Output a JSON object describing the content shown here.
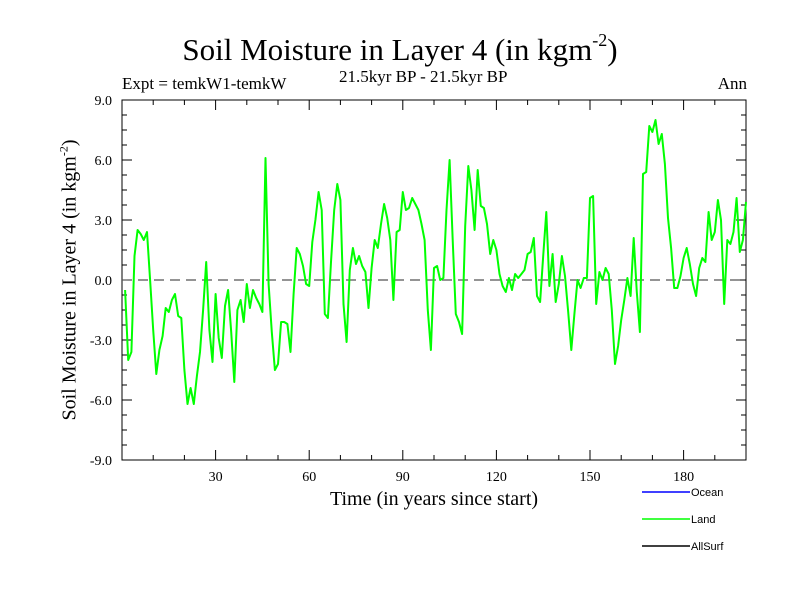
{
  "chart_data": {
    "type": "line",
    "title": "Soil Moisture in Layer 4 (in kgm",
    "title_sup": "-2",
    "title_close": ")",
    "expt_label": "Expt = temkW1-temkW",
    "period_label": "21.5kyr BP - 21.5kyr BP",
    "season_label": "Ann",
    "xlabel": "Time (in years since start)",
    "ylabel": "Soil Moisture in Layer 4 (in kgm",
    "ylabel_sup": "-2",
    "ylabel_close": ")",
    "xlim": [
      0,
      200
    ],
    "ylim": [
      -9,
      9
    ],
    "xticks": [
      30,
      60,
      90,
      120,
      150,
      180
    ],
    "yticks": [
      -9,
      -6,
      -3,
      0,
      3,
      6,
      9
    ],
    "ytick_labels": [
      "-9.0",
      "-6.0",
      "-3.0",
      "0.0",
      "3.0",
      "6.0",
      "9.0"
    ],
    "reference_line": 0,
    "series": [
      {
        "name": "Ocean",
        "color": "#0000ff",
        "values": []
      },
      {
        "name": "Land",
        "color": "#00ff00",
        "x": [
          1,
          2,
          3,
          4,
          5,
          6,
          7,
          8,
          9,
          10,
          11,
          12,
          13,
          14,
          15,
          16,
          17,
          18,
          19,
          20,
          21,
          22,
          23,
          24,
          25,
          26,
          27,
          28,
          29,
          30,
          31,
          32,
          33,
          34,
          35,
          36,
          37,
          38,
          39,
          40,
          41,
          42,
          43,
          44,
          45,
          46,
          47,
          48,
          49,
          50,
          51,
          52,
          53,
          54,
          55,
          56,
          57,
          58,
          59,
          60,
          61,
          62,
          63,
          64,
          65,
          66,
          67,
          68,
          69,
          70,
          71,
          72,
          73,
          74,
          75,
          76,
          77,
          78,
          79,
          80,
          81,
          82,
          83,
          84,
          85,
          86,
          87,
          88,
          89,
          90,
          91,
          92,
          93,
          94,
          95,
          96,
          97,
          98,
          99,
          100,
          101,
          102,
          103,
          104,
          105,
          106,
          107,
          108,
          109,
          110,
          111,
          112,
          113,
          114,
          115,
          116,
          117,
          118,
          119,
          120,
          121,
          122,
          123,
          124,
          125,
          126,
          127,
          128,
          129,
          130,
          131,
          132,
          133,
          134,
          135,
          136,
          137,
          138,
          139,
          140,
          141,
          142,
          143,
          144,
          145,
          146,
          147,
          148,
          149,
          150,
          151,
          152,
          153,
          154,
          155,
          156,
          157,
          158,
          159,
          160,
          161,
          162,
          163,
          164,
          165,
          166,
          167,
          168,
          169,
          170,
          171,
          172,
          173,
          174,
          175,
          176,
          177,
          178,
          179,
          180,
          181,
          182,
          183,
          184,
          185,
          186,
          187,
          188,
          189,
          190,
          191,
          192,
          193,
          194,
          195,
          196,
          197,
          198,
          199,
          200
        ],
        "values": [
          -0.5,
          -4.0,
          -3.6,
          1.2,
          2.5,
          2.3,
          2.0,
          2.4,
          0.0,
          -2.5,
          -4.7,
          -3.5,
          -2.8,
          -1.4,
          -1.6,
          -1.0,
          -0.7,
          -1.8,
          -1.9,
          -4.5,
          -6.2,
          -5.4,
          -6.2,
          -4.8,
          -3.6,
          -1.5,
          0.9,
          -2.5,
          -4.1,
          -0.7,
          -2.9,
          -3.9,
          -1.3,
          -0.5,
          -2.6,
          -5.1,
          -1.5,
          -1.0,
          -2.1,
          -0.2,
          -1.4,
          -0.5,
          -0.9,
          -1.2,
          -1.6,
          6.1,
          -0.2,
          -2.6,
          -4.5,
          -4.2,
          -2.1,
          -2.1,
          -2.2,
          -3.6,
          -0.7,
          1.6,
          1.3,
          0.7,
          -0.2,
          -0.3,
          1.9,
          3.0,
          4.4,
          3.5,
          -1.7,
          -1.9,
          0.9,
          3.5,
          4.8,
          4.0,
          -1.2,
          -3.1,
          0.5,
          1.6,
          0.8,
          1.2,
          0.7,
          0.4,
          -1.4,
          0.6,
          2.0,
          1.6,
          2.8,
          3.8,
          3.1,
          2.0,
          -1.0,
          2.4,
          2.5,
          4.4,
          3.5,
          3.6,
          4.1,
          3.8,
          3.5,
          2.8,
          2.0,
          -1.5,
          -3.5,
          0.6,
          0.7,
          0.0,
          0.1,
          3.5,
          6.0,
          2.0,
          -1.7,
          -2.1,
          -2.7,
          2.7,
          5.7,
          4.5,
          2.5,
          5.5,
          3.7,
          3.6,
          2.8,
          1.3,
          2.0,
          1.5,
          0.3,
          -0.3,
          -0.6,
          0.1,
          -0.5,
          0.3,
          0.1,
          0.3,
          0.5,
          1.3,
          1.4,
          2.1,
          -0.8,
          -1.1,
          1.2,
          3.4,
          -0.3,
          1.3,
          -1.1,
          -0.2,
          1.2,
          0.2,
          -1.6,
          -3.5,
          -1.7,
          0.0,
          -0.4,
          0.1,
          0.1,
          4.1,
          4.2,
          -1.2,
          0.4,
          0.0,
          0.6,
          0.3,
          -1.5,
          -4.2,
          -3.3,
          -2.0,
          -1.0,
          0.1,
          -0.8,
          2.1,
          -0.6,
          -2.6,
          5.3,
          5.4,
          7.7,
          7.4,
          8.0,
          6.8,
          7.3,
          5.8,
          3.1,
          1.6,
          -0.4,
          -0.4,
          0.2,
          1.1,
          1.6,
          0.8,
          -0.2,
          -0.8,
          0.6,
          1.1,
          0.9,
          3.4,
          2.0,
          2.4,
          4.0,
          3.0,
          -1.2,
          2.0,
          1.8,
          2.4,
          4.1,
          1.4,
          2.0,
          3.9
        ]
      },
      {
        "name": "AllSurf",
        "color": "#000000",
        "values": []
      }
    ],
    "legend": [
      "Ocean",
      "Land",
      "AllSurf"
    ]
  }
}
